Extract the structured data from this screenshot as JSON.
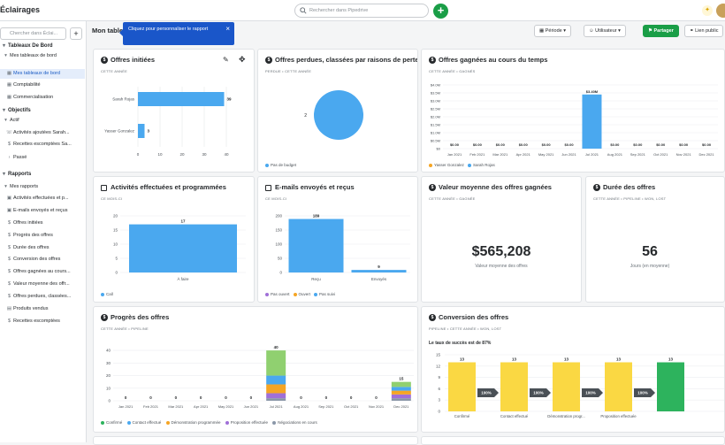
{
  "app": {
    "title": "Éclairages"
  },
  "search": {
    "placeholder": "Rechercher dans Pipedrive"
  },
  "sidebar": {
    "search_placeholder": "Chercher dans Éclai...",
    "rows": [
      {
        "label": "Tableaux De Bord",
        "type": "head",
        "glyph": "▾"
      },
      {
        "label": "Mes tableaux de bord",
        "type": "item",
        "glyph": "▾"
      },
      {
        "label": "Mes tableaux de bord",
        "type": "active",
        "glyph": "▦"
      },
      {
        "label": "Comptabilité",
        "type": "item",
        "glyph": "▦"
      },
      {
        "label": "Commercialisation",
        "type": "item",
        "glyph": "▦"
      },
      {
        "label": "Objectifs",
        "type": "head",
        "glyph": "▾"
      },
      {
        "label": "Actif",
        "type": "item",
        "glyph": "▾"
      },
      {
        "label": "Activités ajoutées Sarah...",
        "type": "item",
        "glyph": "☏"
      },
      {
        "label": "Recettes escomptées Sa...",
        "type": "item",
        "glyph": "$"
      },
      {
        "label": "Passé",
        "type": "item",
        "glyph": "›"
      },
      {
        "label": "Rapports",
        "type": "head",
        "glyph": "▾"
      },
      {
        "label": "Mes rapports",
        "type": "item",
        "glyph": "▾"
      },
      {
        "label": "Activités effectuées et p...",
        "type": "item",
        "glyph": "▣"
      },
      {
        "label": "E-mails envoyés et reçus",
        "type": "item",
        "glyph": "▣"
      },
      {
        "label": "Offres initiées",
        "type": "item",
        "glyph": "$"
      },
      {
        "label": "Progrès des offres",
        "type": "item",
        "glyph": "$"
      },
      {
        "label": "Durée des offres",
        "type": "item",
        "glyph": "$"
      },
      {
        "label": "Conversion des offres",
        "type": "item",
        "glyph": "$"
      },
      {
        "label": "Offres gagnées au cours...",
        "type": "item",
        "glyph": "$"
      },
      {
        "label": "Valeur moyenne des offr...",
        "type": "item",
        "glyph": "$"
      },
      {
        "label": "Offres perdues, classées...",
        "type": "item",
        "glyph": "$"
      },
      {
        "label": "Produits vendus",
        "type": "item",
        "glyph": "▤"
      },
      {
        "label": "Recettes escomptées",
        "type": "item",
        "glyph": "$"
      }
    ]
  },
  "header": {
    "title": "Mon tableau de bord",
    "tooltip": "Cliquez pour personnaliser le rapport",
    "period_label": "Période",
    "user_label": "Utilisateur",
    "share_label": "Partager",
    "public_link_label": "Lien public"
  },
  "colors": {
    "blue": "#4aa8ef",
    "green": "#1a9e47",
    "orange": "#f5a524",
    "purple": "#a070d8",
    "grey": "#8a97a8",
    "yellow": "#fad843",
    "conv_green": "#2db35d",
    "light_green": "#90d070"
  },
  "cards": {
    "offres_initiees": {
      "title": "Offres initiées",
      "filter": "CETTE ANNÉE",
      "chart_data": {
        "type": "bar",
        "orientation": "horizontal",
        "categories": [
          "Sarah Rojas",
          "Yasser Gonzalez"
        ],
        "values": [
          39,
          3
        ],
        "xticks": [
          "0",
          "10",
          "20",
          "30",
          "40"
        ],
        "xlim": [
          0,
          40
        ]
      }
    },
    "offres_perdues": {
      "title": "Offres perdues, classées par raisons de perte",
      "filter": "PERDUE • CETTE ANNÉE",
      "chart_data": {
        "type": "pie",
        "categories": [
          "Pas de budget"
        ],
        "values": [
          2
        ]
      },
      "legend": [
        "Pas de budget"
      ]
    },
    "offres_gagnees": {
      "title": "Offres gagnées au cours du temps",
      "filter": "CETTE ANNÉE • GAGNÉS",
      "chart_data": {
        "type": "bar",
        "categories": [
          "Jan 2021",
          "Feb 2021",
          "Mar 2021",
          "Apr 2021",
          "May 2021",
          "Jun 2021",
          "Jul 2021",
          "Aug 2021",
          "Sep 2021",
          "Oct 2021",
          "Nov 2021",
          "Dec 2021"
        ],
        "series": [
          {
            "name": "Sarah Rojas",
            "values": [
              0,
              0,
              0,
              0,
              0,
              0,
              3.4,
              0,
              0,
              0,
              0,
              0
            ]
          },
          {
            "name": "Yasser Gonzalez",
            "values": [
              0,
              0,
              0,
              0,
              0,
              0,
              0,
              0,
              0,
              0,
              0,
              0
            ]
          }
        ],
        "labels": [
          "$0.00",
          "$0.00",
          "$0.00",
          "$0.00",
          "$0.00",
          "$0.00",
          "$3.40M",
          "$0.00",
          "$0.00",
          "$0.00",
          "$0.00",
          "$0.00"
        ],
        "yticks": [
          "$4.0M",
          "$3.5M",
          "$3.0M",
          "$2.5M",
          "$2.0M",
          "$1.5M",
          "$1.0M",
          "$0.5M",
          "$0"
        ],
        "ylim": [
          0,
          4
        ]
      },
      "legend": [
        "Yasser Gonzalez",
        "Sarah Rojas"
      ]
    },
    "activites": {
      "title": "Activités effectuées et programmées",
      "filter": "CE MOIS-CI",
      "chart_data": {
        "type": "bar",
        "categories": [
          "À faire"
        ],
        "values": [
          17
        ],
        "yticks": [
          "20",
          "15",
          "10",
          "5",
          "0"
        ],
        "ylim": [
          0,
          20
        ]
      },
      "legend": [
        "Call"
      ]
    },
    "emails": {
      "title": "E-mails envoyés et reçus",
      "filter": "CE MOIS-CI",
      "chart_data": {
        "type": "bar",
        "categories": [
          "Reçu",
          "Envoyés"
        ],
        "values": [
          189,
          9
        ],
        "yticks": [
          "200",
          "150",
          "100",
          "50",
          "0"
        ],
        "ylim": [
          0,
          200
        ]
      },
      "legend": [
        "Pas ouvert",
        "Ouvert",
        "Pas suivi"
      ]
    },
    "valeur": {
      "title": "Valeur moyenne des offres gagnées",
      "filter": "CETTE ANNÉE • GAGNÉE",
      "value": "$565,208",
      "sub": "Valeur moyenne des offres"
    },
    "duree": {
      "title": "Durée des offres",
      "filter": "CETTE ANNÉE • PIPELINE • WON, LOST",
      "value": "56",
      "sub": "Jours (en moyenne)"
    },
    "progres": {
      "title": "Progrès des offres",
      "filter": "CETTE ANNÉE • PIPELINE",
      "chart_data": {
        "type": "bar",
        "stacked": true,
        "categories": [
          "Jan 2021",
          "Feb 2021",
          "Mar 2021",
          "Apr 2021",
          "May 2021",
          "Jun 2021",
          "Jul 2021",
          "Aug 2021",
          "Sep 2021",
          "Oct 2021",
          "Nov 2021",
          "Dec 2021"
        ],
        "totals": [
          0,
          0,
          0,
          0,
          0,
          0,
          40,
          0,
          0,
          0,
          0,
          15
        ],
        "series": [
          {
            "name": "Négociations en cours",
            "values": [
              0,
              0,
              0,
              0,
              0,
              0,
              2,
              0,
              0,
              0,
              0,
              2
            ]
          },
          {
            "name": "Proposition effectuée",
            "values": [
              0,
              0,
              0,
              0,
              0,
              0,
              4,
              0,
              0,
              0,
              0,
              3
            ]
          },
          {
            "name": "Démonstration programmée",
            "values": [
              0,
              0,
              0,
              0,
              0,
              0,
              7,
              0,
              0,
              0,
              0,
              3
            ]
          },
          {
            "name": "Contact effectué",
            "values": [
              0,
              0,
              0,
              0,
              0,
              0,
              7,
              0,
              0,
              0,
              0,
              3
            ]
          },
          {
            "name": "Confirmé",
            "values": [
              0,
              0,
              0,
              0,
              0,
              0,
              20,
              0,
              0,
              0,
              0,
              4
            ]
          }
        ],
        "yticks": [
          "40",
          "30",
          "20",
          "10",
          "0"
        ],
        "ylim": [
          0,
          45
        ]
      },
      "legend": [
        "Confirmé",
        "Contact effectué",
        "Démonstration programmée",
        "Proposition effectuée",
        "Négociations en cours"
      ]
    },
    "conversion": {
      "title": "Conversion des offres",
      "filter": "PIPELINE • CETTE ANNÉE • WON, LOST",
      "note": "Le taux de succès est de 87%",
      "chart_data": {
        "type": "bar",
        "categories": [
          "Confirmé",
          "Contact effectué",
          "Démonstration progr...",
          "Proposition effectuée",
          ""
        ],
        "values": [
          13,
          13,
          13,
          13,
          13
        ],
        "connectors": [
          "100%",
          "100%",
          "100%",
          "100%"
        ],
        "yticks": [
          "15",
          "12",
          "9",
          "6",
          "3",
          "0"
        ],
        "ylim": [
          0,
          15
        ]
      }
    }
  }
}
